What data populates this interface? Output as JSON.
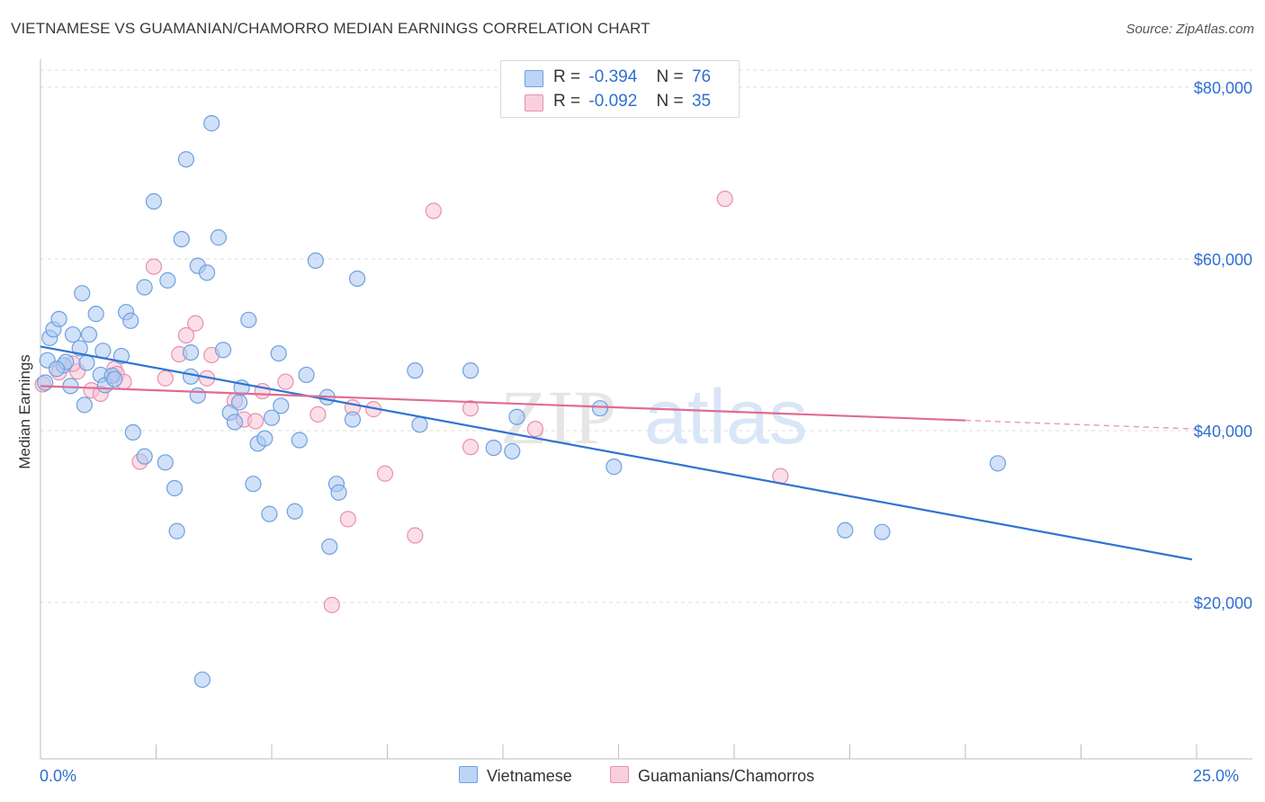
{
  "header": {
    "title": "VIETNAMESE VS GUAMANIAN/CHAMORRO MEDIAN EARNINGS CORRELATION CHART",
    "source": "Source: ZipAtlas.com"
  },
  "watermark": {
    "part1": "ZIP",
    "part2": "atlas"
  },
  "legend": {
    "rows": [
      {
        "r_label": "R =",
        "r_value": "-0.394",
        "n_label": "N =",
        "n_value": "76",
        "color": "#a9c9f3"
      },
      {
        "r_label": "R =",
        "r_value": "-0.092",
        "n_label": "N =",
        "n_value": "35",
        "color": "#f6b9cb"
      }
    ]
  },
  "bottom_legend": [
    {
      "label": "Vietnamese",
      "color": "#a9c9f3"
    },
    {
      "label": "Guamanians/Chamorros",
      "color": "#f6b9cb"
    }
  ],
  "colors": {
    "blue_line": "#2f74d0",
    "pink_line": "#e06b95",
    "blue_fill": "#a9c9f3",
    "blue_stroke": "#6fa0df",
    "pink_fill": "#f7c3d3",
    "pink_stroke": "#e98fb0",
    "tick_label": "#2f6fd0",
    "grid": "#dcdcdc"
  },
  "chart_data": {
    "type": "scatter",
    "title": "VIETNAMESE VS GUAMANIAN/CHAMORRO MEDIAN EARNINGS CORRELATION CHART",
    "xlabel": "",
    "ylabel": "Median Earnings",
    "xlim": [
      0,
      25
    ],
    "ylim": [
      0,
      80000
    ],
    "x_tick_labels": [
      "0.0%",
      "25.0%"
    ],
    "y_ticks": [
      20000,
      40000,
      60000,
      80000
    ],
    "y_tick_labels": [
      "$20,000",
      "$40,000",
      "$60,000",
      "$80,000"
    ],
    "grid": true,
    "legend_position": "top-center",
    "series": [
      {
        "name": "Vietnamese",
        "r": -0.394,
        "n": 76,
        "trend": {
          "x": [
            0.0,
            24.9
          ],
          "y": [
            49800,
            25000
          ]
        },
        "points": [
          [
            0.15,
            48200
          ],
          [
            0.2,
            50800
          ],
          [
            0.28,
            51800
          ],
          [
            0.4,
            53000
          ],
          [
            0.5,
            47600
          ],
          [
            0.55,
            48000
          ],
          [
            0.65,
            45200
          ],
          [
            0.7,
            51200
          ],
          [
            0.85,
            49600
          ],
          [
            0.9,
            56000
          ],
          [
            1.0,
            47900
          ],
          [
            1.05,
            51200
          ],
          [
            1.2,
            53600
          ],
          [
            1.3,
            46500
          ],
          [
            1.35,
            49300
          ],
          [
            1.4,
            45300
          ],
          [
            1.55,
            46400
          ],
          [
            1.75,
            48700
          ],
          [
            1.85,
            53800
          ],
          [
            1.95,
            52800
          ],
          [
            2.0,
            39800
          ],
          [
            2.25,
            56700
          ],
          [
            2.25,
            37000
          ],
          [
            2.45,
            66700
          ],
          [
            2.7,
            36300
          ],
          [
            2.75,
            57500
          ],
          [
            2.9,
            33300
          ],
          [
            2.95,
            28300
          ],
          [
            3.05,
            62300
          ],
          [
            3.15,
            71600
          ],
          [
            3.25,
            46300
          ],
          [
            3.25,
            49100
          ],
          [
            3.4,
            59200
          ],
          [
            3.4,
            44100
          ],
          [
            3.5,
            11000
          ],
          [
            3.6,
            58400
          ],
          [
            3.7,
            75800
          ],
          [
            3.85,
            62500
          ],
          [
            3.95,
            49400
          ],
          [
            4.1,
            42100
          ],
          [
            4.2,
            41000
          ],
          [
            4.3,
            43300
          ],
          [
            4.35,
            45000
          ],
          [
            4.5,
            52900
          ],
          [
            4.6,
            33800
          ],
          [
            4.7,
            38500
          ],
          [
            4.85,
            39100
          ],
          [
            4.95,
            30300
          ],
          [
            5.0,
            41500
          ],
          [
            5.15,
            49000
          ],
          [
            5.2,
            42900
          ],
          [
            5.5,
            30600
          ],
          [
            5.6,
            38900
          ],
          [
            5.75,
            46500
          ],
          [
            5.95,
            59800
          ],
          [
            6.2,
            43900
          ],
          [
            6.25,
            26500
          ],
          [
            6.4,
            33800
          ],
          [
            6.45,
            32800
          ],
          [
            6.75,
            41300
          ],
          [
            6.85,
            57700
          ],
          [
            8.1,
            47000
          ],
          [
            8.2,
            40700
          ],
          [
            9.3,
            47000
          ],
          [
            9.8,
            38000
          ],
          [
            10.2,
            37600
          ],
          [
            10.3,
            41600
          ],
          [
            12.1,
            42600
          ],
          [
            12.4,
            35800
          ],
          [
            17.4,
            28400
          ],
          [
            18.2,
            28200
          ],
          [
            20.7,
            36200
          ],
          [
            0.1,
            45600
          ],
          [
            0.35,
            47200
          ],
          [
            1.6,
            46000
          ],
          [
            0.95,
            43000
          ]
        ]
      },
      {
        "name": "Guamanians/Chamorros",
        "r": -0.092,
        "n": 35,
        "trend": {
          "x": [
            0.0,
            20.0
          ],
          "y": [
            45200,
            41200
          ]
        },
        "trend_dashed": {
          "x": [
            20.0,
            25.0
          ],
          "y": [
            41200,
            40200
          ]
        },
        "points": [
          [
            0.05,
            45400
          ],
          [
            0.4,
            46800
          ],
          [
            0.8,
            46900
          ],
          [
            1.1,
            44700
          ],
          [
            1.3,
            44300
          ],
          [
            1.6,
            47200
          ],
          [
            1.65,
            46600
          ],
          [
            1.8,
            45700
          ],
          [
            2.15,
            36400
          ],
          [
            2.45,
            59100
          ],
          [
            2.7,
            46100
          ],
          [
            3.0,
            48900
          ],
          [
            3.15,
            51100
          ],
          [
            3.35,
            52500
          ],
          [
            3.6,
            46100
          ],
          [
            3.7,
            48800
          ],
          [
            4.2,
            43500
          ],
          [
            4.4,
            41300
          ],
          [
            4.65,
            41100
          ],
          [
            4.8,
            44600
          ],
          [
            5.3,
            45700
          ],
          [
            6.0,
            41900
          ],
          [
            6.65,
            29700
          ],
          [
            6.75,
            42700
          ],
          [
            7.2,
            42500
          ],
          [
            7.45,
            35000
          ],
          [
            8.1,
            27800
          ],
          [
            8.5,
            65600
          ],
          [
            9.3,
            42600
          ],
          [
            9.3,
            38100
          ],
          [
            10.7,
            40200
          ],
          [
            14.8,
            67000
          ],
          [
            16.0,
            34700
          ],
          [
            6.3,
            19700
          ],
          [
            0.7,
            47800
          ]
        ]
      }
    ]
  }
}
